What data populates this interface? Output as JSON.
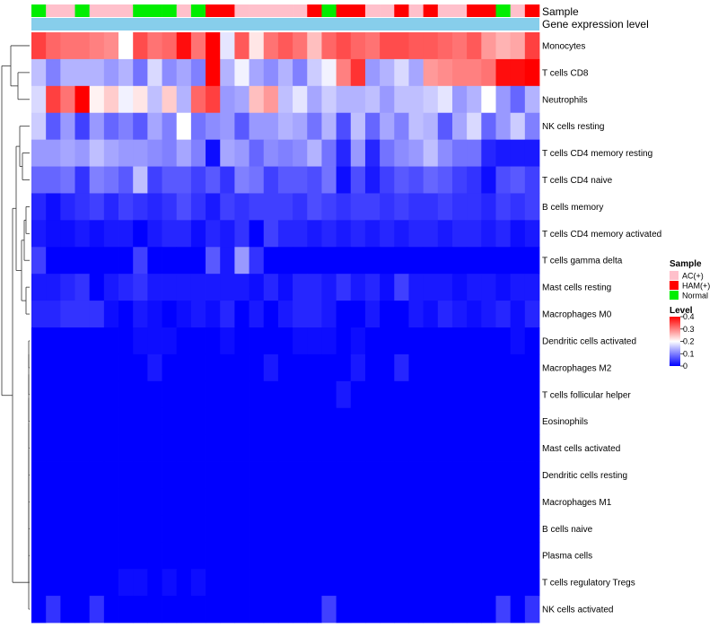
{
  "chart_data": {
    "type": "heatmap",
    "title": "",
    "annotation_rows": [
      {
        "label": "Sample"
      },
      {
        "label": "Gene expression level",
        "color": "#87ceeb"
      }
    ],
    "row_labels": [
      "Monocytes",
      "T cells CD8",
      "Neutrophils",
      "NK cells resting",
      "T cells CD4 memory resting",
      "T cells CD4 naive",
      "B cells memory",
      "T cells CD4 memory activated",
      "T cells gamma delta",
      "Mast cells resting",
      "Macrophages M0",
      "Dendritic cells activated",
      "Macrophages M2",
      "T cells follicular helper",
      "Eosinophils",
      "Mast cells activated",
      "Dendritic cells resting",
      "Macrophages M1",
      "B cells naive",
      "Plasma cells",
      "T cells regulatory  Tregs",
      "NK cells activated"
    ],
    "sample_groups": [
      "Normal",
      "AC(+)",
      "AC(+)",
      "Normal",
      "AC(+)",
      "AC(+)",
      "AC(+)",
      "Normal",
      "Normal",
      "Normal",
      "AC(+)",
      "Normal",
      "HAM(+)",
      "HAM(+)",
      "AC(+)",
      "AC(+)",
      "AC(+)",
      "AC(+)",
      "AC(+)",
      "HAM(+)",
      "Normal",
      "HAM(+)",
      "HAM(+)",
      "AC(+)",
      "AC(+)",
      "HAM(+)",
      "AC(+)",
      "HAM(+)",
      "AC(+)",
      "AC(+)",
      "HAM(+)",
      "HAM(+)",
      "Normal",
      "AC(+)",
      "HAM(+)"
    ],
    "values": [
      [
        0.35,
        0.32,
        0.31,
        0.31,
        0.3,
        0.29,
        0.2,
        0.34,
        0.31,
        0.32,
        0.39,
        0.31,
        0.4,
        0.18,
        0.33,
        0.22,
        0.31,
        0.33,
        0.31,
        0.25,
        0.32,
        0.34,
        0.32,
        0.31,
        0.34,
        0.34,
        0.33,
        0.33,
        0.32,
        0.31,
        0.33,
        0.28,
        0.26,
        0.27,
        0.35
      ],
      [
        0.15,
        0.1,
        0.14,
        0.14,
        0.14,
        0.12,
        0.14,
        0.09,
        0.17,
        0.11,
        0.13,
        0.1,
        0.4,
        0.14,
        0.19,
        0.13,
        0.11,
        0.14,
        0.1,
        0.16,
        0.19,
        0.3,
        0.36,
        0.12,
        0.14,
        0.17,
        0.13,
        0.28,
        0.29,
        0.3,
        0.3,
        0.31,
        0.39,
        0.39,
        0.4
      ],
      [
        0.17,
        0.35,
        0.31,
        0.4,
        0.21,
        0.24,
        0.19,
        0.22,
        0.15,
        0.24,
        0.14,
        0.32,
        0.35,
        0.12,
        0.13,
        0.25,
        0.28,
        0.15,
        0.18,
        0.13,
        0.16,
        0.14,
        0.14,
        0.15,
        0.12,
        0.15,
        0.15,
        0.16,
        0.18,
        0.12,
        0.14,
        0.2,
        0.12,
        0.08,
        0.14
      ],
      [
        0.16,
        0.07,
        0.12,
        0.05,
        0.12,
        0.08,
        0.1,
        0.07,
        0.13,
        0.1,
        0.2,
        0.09,
        0.11,
        0.12,
        0.07,
        0.12,
        0.12,
        0.14,
        0.13,
        0.09,
        0.14,
        0.06,
        0.15,
        0.08,
        0.13,
        0.1,
        0.15,
        0.14,
        0.07,
        0.13,
        0.17,
        0.08,
        0.12,
        0.16,
        0.1
      ],
      [
        0.12,
        0.12,
        0.13,
        0.12,
        0.15,
        0.13,
        0.12,
        0.12,
        0.11,
        0.1,
        0.13,
        0.1,
        0.01,
        0.13,
        0.12,
        0.08,
        0.11,
        0.1,
        0.11,
        0.14,
        0.09,
        0.03,
        0.12,
        0.03,
        0.09,
        0.11,
        0.12,
        0.15,
        0.11,
        0.09,
        0.09,
        0.03,
        0.02,
        0.02,
        0.02
      ],
      [
        0.08,
        0.08,
        0.09,
        0.04,
        0.1,
        0.09,
        0.07,
        0.15,
        0.05,
        0.07,
        0.07,
        0.05,
        0.07,
        0.04,
        0.1,
        0.09,
        0.05,
        0.07,
        0.07,
        0.06,
        0.09,
        0.01,
        0.06,
        0.02,
        0.05,
        0.07,
        0.06,
        0.08,
        0.07,
        0.05,
        0.04,
        0.01,
        0.06,
        0.07,
        0.05
      ],
      [
        0.03,
        0.01,
        0.03,
        0.04,
        0.05,
        0.03,
        0.05,
        0.04,
        0.03,
        0.04,
        0.06,
        0.04,
        0.02,
        0.05,
        0.04,
        0.05,
        0.05,
        0.05,
        0.04,
        0.06,
        0.05,
        0.04,
        0.05,
        0.05,
        0.04,
        0.05,
        0.04,
        0.04,
        0.05,
        0.04,
        0.04,
        0.03,
        0.05,
        0.04,
        0.05
      ],
      [
        0.02,
        0.01,
        0.01,
        0.02,
        0.01,
        0.02,
        0.02,
        0.0,
        0.02,
        0.03,
        0.03,
        0.01,
        0.03,
        0.02,
        0.04,
        0.0,
        0.05,
        0.03,
        0.03,
        0.02,
        0.03,
        0.02,
        0.03,
        0.02,
        0.03,
        0.02,
        0.03,
        0.03,
        0.02,
        0.03,
        0.03,
        0.02,
        0.03,
        0.01,
        0.02
      ],
      [
        0.05,
        0.0,
        0.0,
        0.0,
        0.0,
        0.0,
        0.0,
        0.05,
        0.0,
        0.0,
        0.0,
        0.0,
        0.07,
        0.02,
        0.12,
        0.04,
        0.0,
        0.0,
        0.0,
        0.0,
        0.0,
        0.0,
        0.0,
        0.0,
        0.0,
        0.0,
        0.0,
        0.0,
        0.0,
        0.0,
        0.0,
        0.0,
        0.0,
        0.0,
        0.0
      ],
      [
        0.02,
        0.02,
        0.03,
        0.04,
        0.0,
        0.02,
        0.03,
        0.04,
        0.02,
        0.02,
        0.02,
        0.02,
        0.02,
        0.02,
        0.02,
        0.01,
        0.03,
        0.01,
        0.03,
        0.03,
        0.02,
        0.04,
        0.02,
        0.03,
        0.01,
        0.05,
        0.02,
        0.02,
        0.02,
        0.01,
        0.02,
        0.02,
        0.01,
        0.02,
        0.02
      ],
      [
        0.03,
        0.03,
        0.04,
        0.04,
        0.04,
        0.01,
        0.0,
        0.02,
        0.01,
        0.0,
        0.01,
        0.02,
        0.01,
        0.03,
        0.0,
        0.02,
        0.0,
        0.02,
        0.03,
        0.03,
        0.02,
        0.0,
        0.0,
        0.02,
        0.0,
        0.0,
        0.02,
        0.01,
        0.03,
        0.02,
        0.01,
        0.02,
        0.03,
        0.01,
        0.03
      ],
      [
        0.0,
        0.0,
        0.0,
        0.0,
        0.0,
        0.0,
        0.0,
        0.01,
        0.01,
        0.01,
        0.0,
        0.0,
        0.0,
        0.01,
        0.0,
        0.0,
        0.0,
        0.0,
        0.01,
        0.01,
        0.01,
        0.0,
        0.01,
        0.0,
        0.0,
        0.0,
        0.0,
        0.0,
        0.0,
        0.0,
        0.0,
        0.0,
        0.0,
        0.01,
        0.0
      ],
      [
        0.0,
        0.0,
        0.0,
        0.0,
        0.0,
        0.0,
        0.0,
        0.0,
        0.02,
        0.0,
        0.0,
        0.0,
        0.0,
        0.0,
        0.0,
        0.0,
        0.02,
        0.0,
        0.0,
        0.0,
        0.0,
        0.0,
        0.02,
        0.0,
        0.0,
        0.03,
        0.0,
        0.0,
        0.0,
        0.0,
        0.0,
        0.0,
        0.0,
        0.0,
        0.0
      ],
      [
        0.0,
        0.0,
        0.0,
        0.0,
        0.0,
        0.0,
        0.0,
        0.0,
        0.0,
        0.0,
        0.0,
        0.0,
        0.0,
        0.0,
        0.0,
        0.0,
        0.0,
        0.0,
        0.0,
        0.0,
        0.0,
        0.02,
        0.0,
        0.0,
        0.0,
        0.0,
        0.0,
        0.0,
        0.0,
        0.0,
        0.0,
        0.0,
        0.0,
        0.0,
        0.0
      ],
      [
        0.0,
        0.0,
        0.0,
        0.0,
        0.0,
        0.0,
        0.0,
        0.0,
        0.0,
        0.0,
        0.0,
        0.0,
        0.0,
        0.0,
        0.0,
        0.0,
        0.0,
        0.0,
        0.0,
        0.0,
        0.0,
        0.0,
        0.0,
        0.0,
        0.0,
        0.0,
        0.0,
        0.0,
        0.0,
        0.0,
        0.0,
        0.0,
        0.0,
        0.0,
        0.0
      ],
      [
        0.0,
        0.0,
        0.0,
        0.0,
        0.0,
        0.0,
        0.0,
        0.0,
        0.0,
        0.0,
        0.0,
        0.0,
        0.0,
        0.0,
        0.0,
        0.0,
        0.0,
        0.0,
        0.0,
        0.0,
        0.0,
        0.0,
        0.0,
        0.0,
        0.0,
        0.0,
        0.0,
        0.0,
        0.0,
        0.0,
        0.0,
        0.0,
        0.0,
        0.0,
        0.0
      ],
      [
        0.0,
        0.0,
        0.0,
        0.0,
        0.0,
        0.0,
        0.0,
        0.0,
        0.0,
        0.0,
        0.0,
        0.0,
        0.0,
        0.0,
        0.0,
        0.0,
        0.0,
        0.0,
        0.0,
        0.0,
        0.0,
        0.0,
        0.0,
        0.0,
        0.0,
        0.0,
        0.0,
        0.0,
        0.0,
        0.0,
        0.0,
        0.0,
        0.0,
        0.0,
        0.0
      ],
      [
        0.0,
        0.0,
        0.0,
        0.0,
        0.0,
        0.0,
        0.0,
        0.0,
        0.0,
        0.0,
        0.0,
        0.0,
        0.0,
        0.0,
        0.0,
        0.0,
        0.0,
        0.0,
        0.0,
        0.0,
        0.0,
        0.0,
        0.0,
        0.0,
        0.0,
        0.0,
        0.0,
        0.0,
        0.0,
        0.0,
        0.0,
        0.0,
        0.0,
        0.0,
        0.0
      ],
      [
        0.0,
        0.0,
        0.0,
        0.0,
        0.0,
        0.0,
        0.0,
        0.0,
        0.0,
        0.0,
        0.0,
        0.0,
        0.0,
        0.0,
        0.0,
        0.0,
        0.0,
        0.0,
        0.0,
        0.0,
        0.0,
        0.0,
        0.0,
        0.0,
        0.0,
        0.0,
        0.0,
        0.0,
        0.0,
        0.0,
        0.0,
        0.0,
        0.0,
        0.0,
        0.0
      ],
      [
        0.0,
        0.0,
        0.0,
        0.0,
        0.0,
        0.0,
        0.0,
        0.0,
        0.0,
        0.0,
        0.0,
        0.0,
        0.0,
        0.0,
        0.0,
        0.0,
        0.0,
        0.0,
        0.0,
        0.0,
        0.0,
        0.0,
        0.0,
        0.0,
        0.0,
        0.0,
        0.0,
        0.0,
        0.0,
        0.0,
        0.0,
        0.0,
        0.0,
        0.0,
        0.0
      ],
      [
        0.0,
        0.0,
        0.0,
        0.0,
        0.0,
        0.0,
        0.01,
        0.01,
        0.0,
        0.01,
        0.0,
        0.01,
        0.0,
        0.0,
        0.0,
        0.0,
        0.0,
        0.0,
        0.0,
        0.0,
        0.0,
        0.0,
        0.0,
        0.0,
        0.0,
        0.0,
        0.0,
        0.0,
        0.0,
        0.0,
        0.0,
        0.0,
        0.0,
        0.0,
        0.0
      ],
      [
        0.0,
        0.04,
        0.0,
        0.0,
        0.04,
        0.0,
        0.0,
        0.0,
        0.0,
        0.0,
        0.0,
        0.0,
        0.0,
        0.0,
        0.0,
        0.0,
        0.0,
        0.0,
        0.0,
        0.0,
        0.05,
        0.0,
        0.0,
        0.0,
        0.0,
        0.0,
        0.0,
        0.0,
        0.0,
        0.0,
        0.0,
        0.0,
        0.05,
        0.0,
        0.04
      ]
    ],
    "color_scale": {
      "min": 0,
      "max": 0.4,
      "low": "#0000ff",
      "mid": "#ffffff",
      "high": "#ff0000",
      "midpoint": 0.2
    },
    "legend": {
      "sample_title": "Sample",
      "sample_groups": [
        {
          "name": "AC(+)",
          "color": "#ffc0cb"
        },
        {
          "name": "HAM(+)",
          "color": "#ff0000"
        },
        {
          "name": "Normal",
          "color": "#00ee00"
        }
      ],
      "level_title": "Level",
      "level_ticks": [
        "0.4",
        "0.3",
        "0.2",
        "0.1",
        "0"
      ],
      "level_tick_values": [
        0.4,
        0.3,
        0.2,
        0.1,
        0
      ],
      "placement": "right"
    },
    "dendrogram": "rows"
  }
}
